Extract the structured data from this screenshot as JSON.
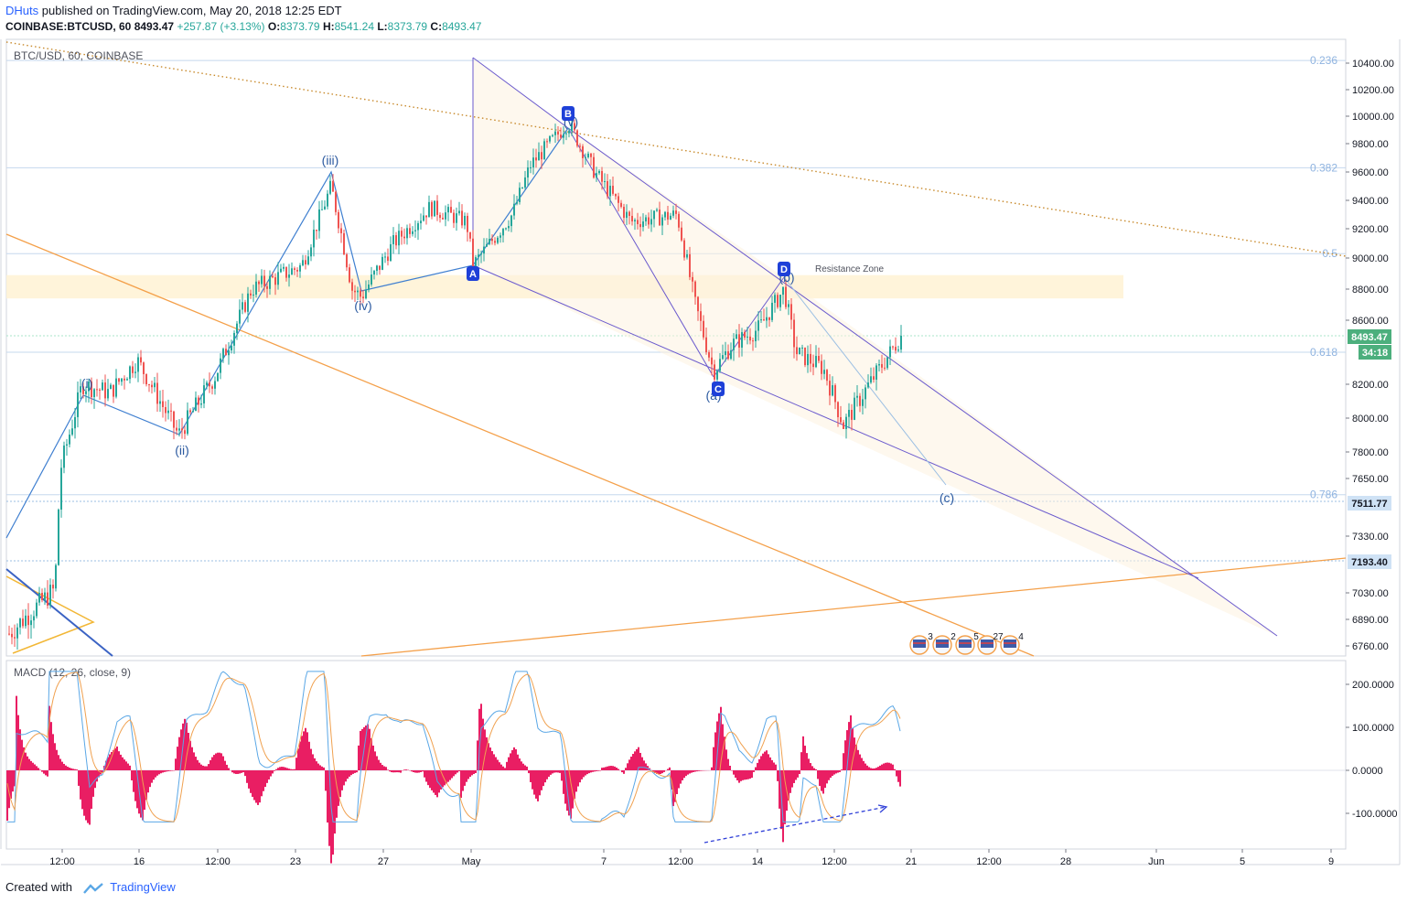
{
  "header": {
    "author": "DHuts",
    "published": "published on TradingView.com, May 20, 2018 12:25 EDT"
  },
  "ohlc": {
    "symbol": "COINBASE:BTCUSD, 60",
    "last": "8493.47",
    "change": "+257.87 (+3.13%)",
    "o_label": "O:",
    "o": "8373.79",
    "h_label": "H:",
    "h": "8541.24",
    "l_label": "L:",
    "l": "8373.79",
    "c_label": "C:",
    "c": "8493.47"
  },
  "pane_title": "BTC/USD, 60, COINBASE",
  "macd_title": "MACD (12, 26, close, 9)",
  "footer": {
    "created": "Created with",
    "brand": "TradingView"
  },
  "colors": {
    "up": "#26a69a",
    "down": "#ef5350",
    "wave": "#1e88e5",
    "channel": "#6a5acd",
    "orange": "#f4a04a",
    "fib": "#90b4e0",
    "hist": "#e91e63",
    "zone": "#fff3d6"
  },
  "chart_data": {
    "type": "candlestick",
    "price_axis": {
      "ticks": [
        "10400.00",
        "10200.00",
        "10000.00",
        "9800.00",
        "9600.00",
        "9400.00",
        "9200.00",
        "9000.00",
        "8800.00",
        "8600.00",
        "8200.00",
        "8000.00",
        "7800.00",
        "7650.00",
        "7330.00",
        "7030.00",
        "6890.00",
        "6760.00"
      ]
    },
    "time_axis": {
      "ticks": [
        "12:00",
        "16",
        "12:00",
        "23",
        "27",
        "May",
        "7",
        "12:00",
        "14",
        "12:00",
        "21",
        "12:00",
        "28",
        "Jun",
        "5",
        "9"
      ]
    },
    "price_labels": [
      {
        "value": "8493.47",
        "sub": "34:18",
        "color": "#4caf7d"
      },
      {
        "value": "7511.77",
        "color": "#cfe2f5"
      },
      {
        "value": "7193.40",
        "color": "#cfe2f5"
      }
    ],
    "fib_levels": [
      {
        "label": "0.236",
        "price": 10420
      },
      {
        "label": "0.382",
        "price": 9630
      },
      {
        "label": "0.5",
        "price": 9030
      },
      {
        "label": "0.618",
        "price": 8400
      },
      {
        "label": "0.786",
        "price": 7560
      }
    ],
    "wave_labels": [
      "(i)",
      "(ii)",
      "(iii)",
      "(iv)",
      "(v)",
      "(a)",
      "(b)",
      "(c)"
    ],
    "pattern_points": [
      "A",
      "B",
      "C",
      "D"
    ],
    "annotation": "Resistance Zone",
    "event_counts": [
      "3",
      "2",
      "5",
      "27",
      "4"
    ],
    "macd_axis": {
      "ticks": [
        "200.0000",
        "100.0000",
        "0.0000",
        "-100.0000"
      ]
    },
    "macd": {
      "fast": 12,
      "slow": 26,
      "source": "close",
      "signal": 9
    }
  }
}
